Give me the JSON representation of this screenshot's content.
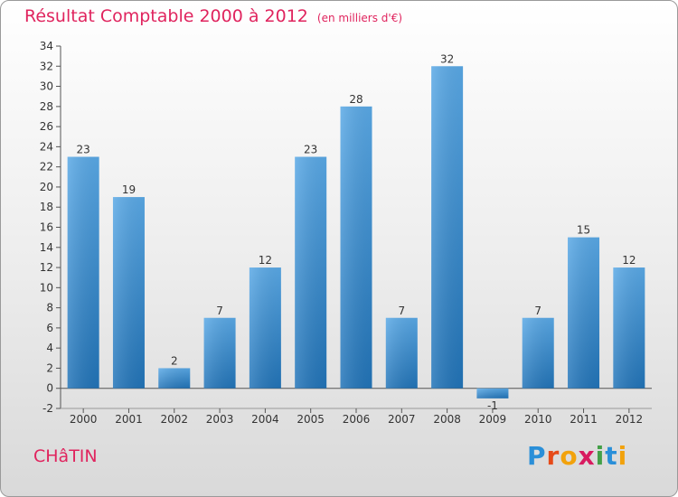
{
  "header": {
    "title": "Résultat Comptable 2000 à 2012",
    "units": "(en milliers d'€)"
  },
  "footer": {
    "commune": "CHâTIN",
    "logo_letters": [
      {
        "ch": "P",
        "color": "#2a8fd8"
      },
      {
        "ch": "r",
        "color": "#e64a19"
      },
      {
        "ch": "o",
        "color": "#f2a20c"
      },
      {
        "ch": "x",
        "color": "#d81b60"
      },
      {
        "ch": "i",
        "color": "#43a047"
      },
      {
        "ch": "t",
        "color": "#2a8fd8"
      },
      {
        "ch": "i",
        "color": "#f2a20c"
      }
    ]
  },
  "chart_data": {
    "type": "bar",
    "title": "Résultat Comptable 2000 à 2012",
    "subtitle": "(en milliers d'€)",
    "xlabel": "",
    "ylabel": "",
    "categories": [
      "2000",
      "2001",
      "2002",
      "2003",
      "2004",
      "2005",
      "2006",
      "2007",
      "2008",
      "2009",
      "2010",
      "2011",
      "2012"
    ],
    "values": [
      23,
      19,
      2,
      7,
      12,
      23,
      28,
      7,
      32,
      -1,
      7,
      15,
      12
    ],
    "ylim": [
      -2,
      34
    ],
    "yticks": [
      -2,
      0,
      2,
      4,
      6,
      8,
      10,
      12,
      14,
      16,
      18,
      20,
      22,
      24,
      26,
      28,
      30,
      32,
      34
    ],
    "grid": false,
    "bar_color_top": "#5aa9e6",
    "bar_color_bottom": "#2274b8"
  }
}
